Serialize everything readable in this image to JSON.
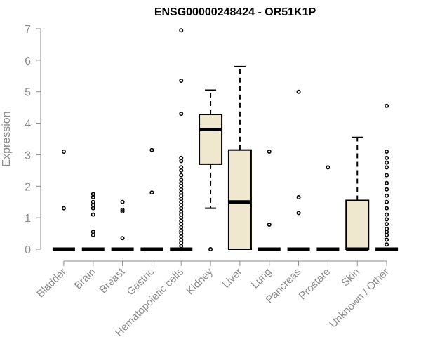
{
  "chart_data": {
    "type": "boxplot",
    "title": "ENSG00000248424 - OR51K1P",
    "xlabel": "",
    "ylabel": "Expression",
    "ylim": [
      0,
      7
    ],
    "yticks": [
      0,
      1,
      2,
      3,
      4,
      5,
      6,
      7
    ],
    "grid": false,
    "legend": "none",
    "colors": {
      "box_fill": "#efe8cf",
      "box_stroke": "#000000",
      "axis": "#8a8a8a"
    },
    "categories": [
      "Bladder",
      "Brain",
      "Breast",
      "Gastric",
      "Hematopoietic cells",
      "Kidney",
      "Liver",
      "Lung",
      "Pancreas",
      "Prostate",
      "Skin",
      "Unknown / Other"
    ],
    "boxes": [
      {
        "category": "Bladder",
        "min": 0,
        "q1": 0,
        "median": 0,
        "q3": 0,
        "max": 0,
        "outliers": [
          1.3,
          3.1
        ]
      },
      {
        "category": "Brain",
        "min": 0,
        "q1": 0,
        "median": 0,
        "q3": 0,
        "max": 0,
        "outliers": [
          0.45,
          0.55,
          1.1,
          1.3,
          1.4,
          1.5,
          1.65,
          1.75
        ]
      },
      {
        "category": "Breast",
        "min": 0,
        "q1": 0,
        "median": 0,
        "q3": 0,
        "max": 0,
        "outliers": [
          0.35,
          1.2,
          1.25,
          1.5
        ]
      },
      {
        "category": "Gastric",
        "min": 0,
        "q1": 0,
        "median": 0,
        "q3": 0,
        "max": 0,
        "outliers": [
          1.8,
          3.15
        ]
      },
      {
        "category": "Hematopoietic cells",
        "min": 0,
        "q1": 0,
        "median": 0,
        "q3": 0,
        "max": 0,
        "outliers": [
          0.1,
          0.2,
          0.3,
          0.4,
          0.5,
          0.6,
          0.7,
          0.8,
          0.9,
          1.0,
          1.1,
          1.2,
          1.3,
          1.4,
          1.5,
          1.6,
          1.7,
          1.8,
          1.9,
          2.0,
          2.1,
          2.2,
          2.35,
          2.5,
          2.6,
          2.8,
          2.9,
          4.3,
          5.35,
          6.95
        ]
      },
      {
        "category": "Kidney",
        "min": 1.3,
        "q1": 2.7,
        "median": 3.8,
        "q3": 4.28,
        "max": 5.05,
        "outliers": [
          0
        ]
      },
      {
        "category": "Liver",
        "min": 0,
        "q1": 0,
        "median": 1.5,
        "q3": 3.15,
        "max": 5.8,
        "outliers": []
      },
      {
        "category": "Lung",
        "min": 0,
        "q1": 0,
        "median": 0,
        "q3": 0,
        "max": 0,
        "outliers": [
          0.78,
          3.1
        ]
      },
      {
        "category": "Pancreas",
        "min": 0,
        "q1": 0,
        "median": 0,
        "q3": 0,
        "max": 0,
        "outliers": [
          1.15,
          1.65,
          5.0
        ]
      },
      {
        "category": "Prostate",
        "min": 0,
        "q1": 0,
        "median": 0,
        "q3": 0,
        "max": 0,
        "outliers": [
          2.6
        ]
      },
      {
        "category": "Skin",
        "min": 0,
        "q1": 0,
        "median": 0,
        "q3": 1.55,
        "max": 3.55,
        "outliers": []
      },
      {
        "category": "Unknown / Other",
        "min": 0,
        "q1": 0,
        "median": 0,
        "q3": 0,
        "max": 0,
        "outliers": [
          0.15,
          0.3,
          0.45,
          0.55,
          0.65,
          0.8,
          0.95,
          1.1,
          1.3,
          1.5,
          1.7,
          1.9,
          2.1,
          2.35,
          2.6,
          2.75,
          2.9,
          3.1,
          4.55
        ]
      }
    ]
  }
}
